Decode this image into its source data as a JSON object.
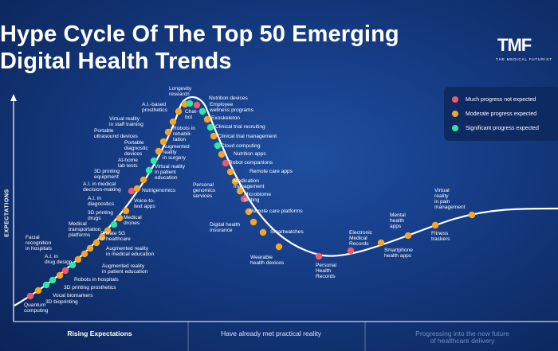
{
  "title": "Hype Cycle Of The Top 50 Emerging\nDigital Health Trends",
  "logo": {
    "mark": "TMF",
    "subtitle": "THE MEDICAL FUTURIST"
  },
  "y_axis_label": "EXPECTATIONS",
  "legend": [
    {
      "key": "red",
      "label": "Much progress not expected",
      "color": "#f0596b"
    },
    {
      "key": "yellow",
      "label": "Moderate progress expected",
      "color": "#f6a623"
    },
    {
      "key": "green",
      "label": "Significant progress expected",
      "color": "#2fe6a2"
    }
  ],
  "sections": [
    "Rising Expectations",
    "Have already met practical reality",
    "Progressing into the new future\nof healthcare delivery"
  ],
  "colors": {
    "curve": "#ffffff",
    "axis": "#ffffff",
    "red": "#f0596b",
    "yellow": "#f6a623",
    "green": "#2fe6a2"
  },
  "trends": [
    {
      "label": "Quantum\ncomputing",
      "category": "red"
    },
    {
      "label": "3D bioprinting",
      "category": "yellow"
    },
    {
      "label": "Vocal biomarkers",
      "category": "green"
    },
    {
      "label": "3D printing prosthetics",
      "category": "green"
    },
    {
      "label": "Robots in hospitals",
      "category": "yellow"
    },
    {
      "label": "Augmented reality\nin patient education",
      "category": "red"
    },
    {
      "label": "A.I. in\ndrug design",
      "category": "green"
    },
    {
      "label": "Augmented reality\nin medical education",
      "category": "yellow"
    },
    {
      "label": "Facial\nrecognition\nin hospitals",
      "category": "yellow"
    },
    {
      "label": "Private 5G\nin healthcare",
      "category": "yellow"
    },
    {
      "label": "Medical\ntransportation\nplatforms",
      "category": "yellow"
    },
    {
      "label": "Medical\ndrones",
      "category": "yellow"
    },
    {
      "label": "3D printing\ndrugs",
      "category": "yellow"
    },
    {
      "label": "A.I. in\ndiagnostics",
      "category": "green"
    },
    {
      "label": "Voice-to-\ntext apps",
      "category": "yellow"
    },
    {
      "label": "A.I. in medical\ndecision-making",
      "category": "yellow"
    },
    {
      "label": "Nutrigenomics",
      "category": "red"
    },
    {
      "label": "3D printing\nequipment",
      "category": "yellow"
    },
    {
      "label": "Virtual reality\nin patient\neducation",
      "category": "yellow"
    },
    {
      "label": "At-home\nlab tests",
      "category": "green"
    },
    {
      "label": "Augmented\nreality\nin surgery",
      "category": "green"
    },
    {
      "label": "Portable\ndiagnostic\ndevices",
      "category": "yellow"
    },
    {
      "label": "Portable\nultrasound devices",
      "category": "yellow"
    },
    {
      "label": "Robots in\nrehabili-\ntation",
      "category": "yellow"
    },
    {
      "label": "Virtual reality\nin staff training",
      "category": "yellow"
    },
    {
      "label": "A.I.-based\nprosthetics",
      "category": "yellow"
    },
    {
      "label": "Chat-\nbot",
      "category": "yellow"
    },
    {
      "label": "Longevity\nresearch",
      "category": "green"
    },
    {
      "label": "Nutrition devices",
      "category": "red"
    },
    {
      "label": "Employee\nwellness programs",
      "category": "green"
    },
    {
      "label": "Exoskeleton",
      "category": "yellow"
    },
    {
      "label": "Clinical trial recruiting",
      "category": "green"
    },
    {
      "label": "Clinical trial management",
      "category": "yellow"
    },
    {
      "label": "Cloud computing",
      "category": "green"
    },
    {
      "label": "Nutrition apps",
      "category": "yellow"
    },
    {
      "label": "Robot companions",
      "category": "red"
    },
    {
      "label": "Remote care apps",
      "category": "yellow"
    },
    {
      "label": "Personal\ngenomics\nservices",
      "category": "yellow"
    },
    {
      "label": "Medication\nmanagement",
      "category": "yellow"
    },
    {
      "label": "Microbiome\ntesting",
      "category": "red"
    },
    {
      "label": "Remote care platforms",
      "category": "yellow"
    },
    {
      "label": "Digital health\ninsurance",
      "category": "yellow"
    },
    {
      "label": "Smartwatches",
      "category": "yellow"
    },
    {
      "label": "Wearable\nhealth devices",
      "category": "yellow"
    },
    {
      "label": "Personal\nHealth\nRecords",
      "category": "red"
    },
    {
      "label": "Electronic\nMedical\nRecords",
      "category": "red"
    },
    {
      "label": "Smartphone\nhealth apps",
      "category": "yellow"
    },
    {
      "label": "Mental\nhealth\napps",
      "category": "yellow"
    },
    {
      "label": "Fitness\ntrackers",
      "category": "yellow"
    },
    {
      "label": "Virtual\nreality\nin pain\nmanagement",
      "category": "yellow"
    }
  ]
}
